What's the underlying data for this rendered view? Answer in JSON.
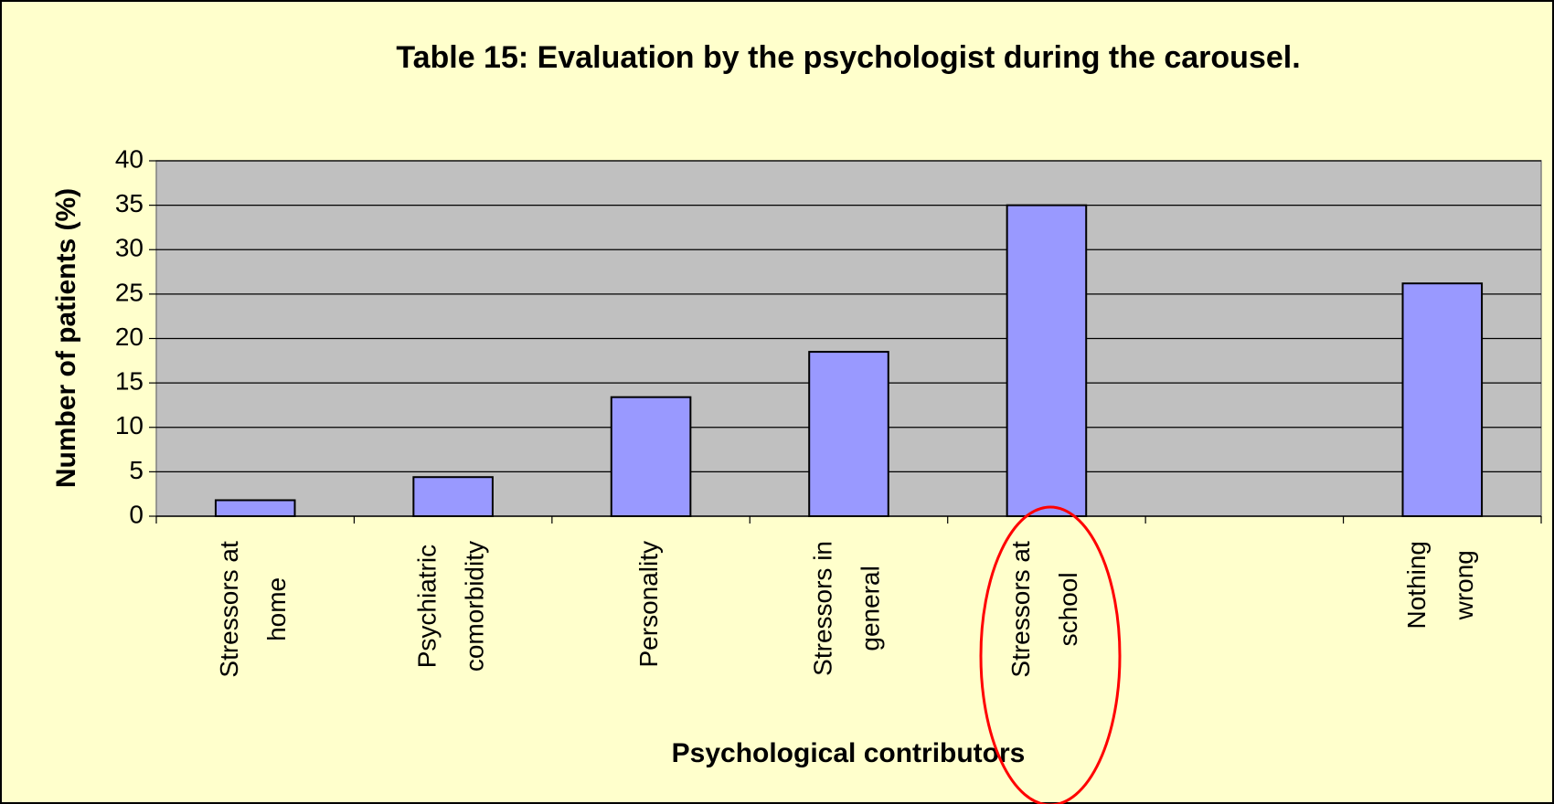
{
  "chart_data": {
    "type": "bar",
    "title": "Table 15: Evaluation by the psychologist during the carousel.",
    "x_label": "Psychological contributors",
    "y_label": "Number of patients (%)",
    "categories": [
      "Stressors at\nhome",
      "Psychiatric\ncomorbidity",
      "Personality",
      "Stressors in\ngeneral",
      "Stressors at\nschool",
      null,
      "Nothing\nwrong"
    ],
    "values": [
      1.8,
      4.4,
      13.4,
      18.5,
      35,
      null,
      26.2
    ],
    "color": "#9999ff",
    "ylim": [
      0,
      40
    ],
    "yticks": [
      0,
      5,
      10,
      15,
      20,
      25,
      30,
      35,
      40
    ],
    "grid": true
  }
}
